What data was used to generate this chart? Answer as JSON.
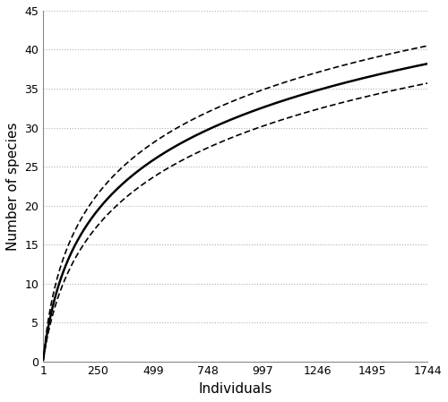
{
  "x_max": 1744,
  "x_ticks": [
    1,
    250,
    499,
    748,
    997,
    1246,
    1495,
    1744
  ],
  "y_ticks": [
    0,
    5,
    10,
    15,
    20,
    25,
    30,
    35,
    40,
    45
  ],
  "ylim": [
    0,
    45
  ],
  "xlim": [
    1,
    1744
  ],
  "xlabel": "Individuals",
  "ylabel": "Number of species",
  "main_color": "#000000",
  "ci_color": "#000000",
  "background_color": "#ffffff",
  "grid_color": "#b0b0b0",
  "main_lw": 1.8,
  "ci_lw": 1.2,
  "rarefaction_params": {
    "S_total": 38.2,
    "k_main": 0.022,
    "S_upper_total": 40.5,
    "k_upper": 0.028,
    "S_lower_total": 35.7,
    "k_lower": 0.018
  }
}
